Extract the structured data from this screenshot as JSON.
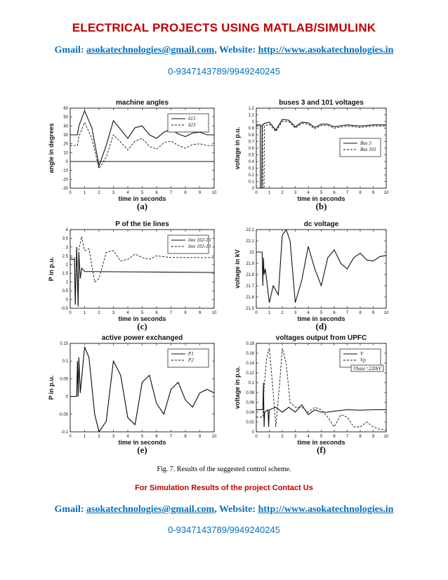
{
  "header": {
    "title": "ELECTRICAL PROJECTS USING MATLAB/SIMULINK",
    "gmail_label": "Gmail: ",
    "email": "asokatechnologies@gmail.com",
    "website_label": ", Website: ",
    "website": "http://www.asokatechnologies.in",
    "phone": "0-9347143789/9949240245"
  },
  "caption": "Fig. 7. Results of the suggested control scheme.",
  "cta": "For Simulation Results of the project Contact Us",
  "footer": {
    "gmail_label": "Gmail: ",
    "email": "asokatechnologies@gmail.com",
    "website_label": ", Website: ",
    "website": "http://www.asokatechnologies.in",
    "phone": "0-9347143789/9949240245"
  },
  "chart_data": [
    {
      "type": "line",
      "panel": "(a)",
      "title": "machine angles",
      "xlabel": "time in seconds",
      "ylabel": "angle in degrees",
      "xlim": [
        0,
        10
      ],
      "ylim": [
        -30,
        60
      ],
      "xticks": [
        0,
        1,
        2,
        3,
        4,
        5,
        6,
        7,
        8,
        9,
        10
      ],
      "yticks": [
        -30,
        -20,
        -10,
        0,
        10,
        20,
        30,
        40,
        50,
        60
      ],
      "legend": "top-right",
      "series": [
        {
          "name": "δ13",
          "style": "solid",
          "x": [
            0,
            0.5,
            0.6,
            1.0,
            1.5,
            2.0,
            2.5,
            3.0,
            3.5,
            4.0,
            4.5,
            5.0,
            5.5,
            6.0,
            6.5,
            7.0,
            7.5,
            8.0,
            8.5,
            9.0,
            9.5,
            10
          ],
          "y": [
            30,
            30,
            40,
            57,
            38,
            -5,
            18,
            46,
            36,
            26,
            38,
            40,
            30,
            26,
            33,
            36,
            31,
            28,
            32,
            33,
            30,
            30
          ]
        },
        {
          "name": "δ23",
          "style": "dashed",
          "x": [
            0,
            0.5,
            0.6,
            1.0,
            1.5,
            2.0,
            2.5,
            3.0,
            3.5,
            4.0,
            4.5,
            5.0,
            5.5,
            6.0,
            6.5,
            7.0,
            7.5,
            8.0,
            8.5,
            9.0,
            9.5,
            10
          ],
          "y": [
            18,
            18,
            28,
            44,
            26,
            -8,
            5,
            30,
            22,
            13,
            23,
            26,
            17,
            14,
            21,
            23,
            18,
            15,
            19,
            20,
            18,
            18
          ]
        },
        {
          "name": "",
          "style": "solid",
          "x": [
            0,
            10
          ],
          "y": [
            0,
            0
          ]
        }
      ]
    },
    {
      "type": "line",
      "panel": "(b)",
      "title": "buses 3 and 101 voltages",
      "xlabel": "time in seconds",
      "ylabel": "voltage in p.u.",
      "xlim": [
        0,
        10
      ],
      "ylim": [
        0,
        1.2
      ],
      "xticks": [
        0,
        1,
        2,
        3,
        4,
        5,
        6,
        7,
        8,
        9,
        10
      ],
      "yticks": [
        0,
        0.1,
        0.2,
        0.3,
        0.4,
        0.5,
        0.6,
        0.7,
        0.8,
        0.9,
        1,
        1.1,
        1.2
      ],
      "legend": "lower-right",
      "series": [
        {
          "name": "Bus 3",
          "style": "solid",
          "x": [
            0,
            0.3,
            0.32,
            0.42,
            0.45,
            0.55,
            0.6,
            1.0,
            1.5,
            2.0,
            2.5,
            3.0,
            3.5,
            4.0,
            4.5,
            5.0,
            5.5,
            6.0,
            7.0,
            8.0,
            9.0,
            10
          ],
          "y": [
            0.95,
            0.95,
            0.0,
            0.0,
            0.95,
            0.95,
            0.97,
            0.99,
            0.87,
            1.03,
            1.02,
            0.92,
            0.99,
            0.98,
            0.91,
            0.96,
            0.96,
            0.92,
            0.95,
            0.93,
            0.95,
            0.95
          ]
        },
        {
          "name": "Bus 101",
          "style": "dashed",
          "x": [
            0,
            0.48,
            0.5,
            0.6,
            0.62,
            1.0,
            1.5,
            2.0,
            2.5,
            3.0,
            3.5,
            4.0,
            4.5,
            5.0,
            5.5,
            6.0,
            7.0,
            8.0,
            9.0,
            10
          ],
          "y": [
            0.93,
            0.93,
            0.0,
            0.0,
            0.93,
            0.96,
            0.85,
            1.0,
            1.0,
            0.9,
            0.97,
            0.96,
            0.89,
            0.94,
            0.94,
            0.9,
            0.93,
            0.91,
            0.93,
            0.93
          ]
        }
      ]
    },
    {
      "type": "line",
      "panel": "(c)",
      "title": "P of the tie lines",
      "xlabel": "time in seconds",
      "ylabel": "P in p.u.",
      "xlim": [
        0,
        10
      ],
      "ylim": [
        -0.5,
        4
      ],
      "xticks": [
        0,
        1,
        2,
        3,
        4,
        5,
        6,
        7,
        8,
        9,
        10
      ],
      "yticks": [
        -0.5,
        0,
        0.5,
        1,
        1.5,
        2,
        2.5,
        3,
        3.5,
        4
      ],
      "legend": "top-right",
      "series": [
        {
          "name": "line 102-13",
          "style": "solid",
          "x": [
            0,
            0.3,
            0.35,
            0.45,
            0.55,
            0.6,
            0.7,
            0.8,
            1.0,
            10
          ],
          "y": [
            2.3,
            2.3,
            -0.3,
            3.0,
            -0.4,
            2.7,
            1.2,
            1.8,
            1.6,
            1.55
          ]
        },
        {
          "name": "line 101-13",
          "style": "dashed",
          "x": [
            0,
            0.3,
            0.35,
            0.45,
            0.55,
            0.6,
            0.8,
            1.0,
            1.3,
            1.7,
            2.0,
            2.5,
            3.0,
            3.5,
            4.0,
            4.5,
            5.0,
            5.5,
            6.0,
            7.0,
            8.0,
            9.0,
            10
          ],
          "y": [
            2.4,
            2.4,
            -0.2,
            3.0,
            -0.3,
            2.9,
            3.6,
            2.8,
            2.9,
            1.0,
            1.2,
            2.7,
            2.8,
            2.2,
            2.3,
            2.6,
            2.4,
            2.3,
            2.5,
            2.4,
            2.4,
            2.4,
            2.4
          ]
        }
      ]
    },
    {
      "type": "line",
      "panel": "(d)",
      "title": "dc voltage",
      "xlabel": "time in seconds",
      "ylabel": "voltage in kV",
      "xlim": [
        0,
        10
      ],
      "ylim": [
        21.5,
        22.2
      ],
      "xticks": [
        0,
        1,
        2,
        3,
        4,
        5,
        6,
        7,
        8,
        9,
        10
      ],
      "yticks": [
        21.5,
        21.6,
        21.7,
        21.8,
        21.9,
        22,
        22.1,
        22.2
      ],
      "legend": "none",
      "series": [
        {
          "name": "",
          "style": "solid",
          "x": [
            0,
            0.45,
            0.5,
            0.55,
            0.6,
            0.7,
            1.0,
            1.3,
            1.7,
            2.0,
            2.3,
            2.6,
            3.0,
            3.5,
            4.0,
            4.5,
            5.0,
            5.5,
            6.0,
            6.5,
            7.0,
            7.5,
            8.0,
            8.5,
            9.0,
            9.5,
            10
          ],
          "y": [
            22.0,
            22.0,
            21.7,
            21.95,
            21.8,
            21.85,
            21.55,
            21.7,
            21.62,
            22.15,
            22.2,
            22.1,
            21.55,
            21.75,
            22.05,
            21.85,
            21.7,
            21.95,
            22.02,
            21.9,
            21.85,
            21.95,
            21.99,
            21.93,
            21.92,
            21.96,
            21.97
          ]
        }
      ]
    },
    {
      "type": "line",
      "panel": "(e)",
      "title": "active power exchanged",
      "xlabel": "time in seconds",
      "ylabel": "P in p.u.",
      "xlim": [
        0,
        10
      ],
      "ylim": [
        -0.1,
        0.15
      ],
      "xticks": [
        0,
        1,
        2,
        3,
        4,
        5,
        6,
        7,
        8,
        9,
        10
      ],
      "yticks": [
        -0.1,
        -0.05,
        0,
        0.05,
        0.1,
        0.15
      ],
      "legend": "top-right",
      "series": [
        {
          "name": "P1",
          "style": "solid",
          "x": [
            0,
            0.45,
            0.5,
            0.55,
            0.6,
            0.7,
            1.0,
            1.3,
            1.7,
            2.0,
            2.5,
            3.0,
            3.5,
            4.0,
            4.5,
            5.0,
            5.5,
            6.0,
            6.5,
            7.0,
            7.5,
            8.0,
            8.5,
            9.0,
            9.5,
            10
          ],
          "y": [
            0,
            0,
            0.1,
            0,
            0.11,
            0.01,
            0.14,
            0.11,
            -0.05,
            -0.1,
            -0.07,
            0.1,
            0.06,
            -0.06,
            -0.08,
            0.04,
            0.06,
            -0.02,
            -0.05,
            0.02,
            0.04,
            -0.01,
            -0.03,
            0.01,
            0.02,
            0.01
          ]
        },
        {
          "name": "P2",
          "style": "dashed",
          "x": [
            0,
            0.45,
            0.5,
            0.55,
            0.6,
            0.7,
            1.0,
            1.3,
            1.7,
            2.0,
            2.5,
            3.0,
            3.5,
            4.0,
            4.5,
            5.0,
            5.5,
            6.0,
            6.5,
            7.0,
            7.5,
            8.0,
            8.5,
            9.0,
            9.5,
            10
          ],
          "y": [
            0,
            0,
            0.1,
            0,
            0.11,
            0.01,
            0.14,
            0.11,
            -0.05,
            -0.1,
            -0.07,
            0.1,
            0.06,
            -0.06,
            -0.08,
            0.04,
            0.06,
            -0.02,
            -0.05,
            0.02,
            0.04,
            -0.01,
            -0.03,
            0.01,
            0.02,
            0.01
          ]
        }
      ]
    },
    {
      "type": "line",
      "panel": "(f)",
      "title": "voltages output from UPFC",
      "xlabel": "time in seconds",
      "ylabel": "voltage in p.u.",
      "xlim": [
        0,
        10
      ],
      "ylim": [
        0,
        0.18
      ],
      "xticks": [
        0,
        1,
        2,
        3,
        4,
        5,
        6,
        7,
        8,
        9,
        10
      ],
      "yticks": [
        0,
        0.02,
        0.04,
        0.06,
        0.08,
        0.1,
        0.12,
        0.14,
        0.16,
        0.18
      ],
      "legend": "top-right",
      "annotation": "Vbase=220kV",
      "series": [
        {
          "name": "V",
          "style": "solid",
          "x": [
            0,
            0.5,
            0.55,
            0.6,
            0.65,
            0.9,
            0.95,
            1.0,
            1.5,
            2.0,
            2.5,
            3.0,
            3.5,
            4.0,
            4.5,
            5.0,
            5.5,
            6.0,
            7.0,
            8.0,
            9.0,
            10
          ],
          "y": [
            0.045,
            0.045,
            0.1,
            0.01,
            0.04,
            0.045,
            0.01,
            0.045,
            0.05,
            0.04,
            0.05,
            0.04,
            0.055,
            0.035,
            0.045,
            0.04,
            0.04,
            0.042,
            0.045,
            0.044,
            0.045,
            0.045
          ]
        },
        {
          "name": "Vp",
          "style": "dashed",
          "x": [
            0,
            0.5,
            0.6,
            0.8,
            1.0,
            1.3,
            1.5,
            1.8,
            2.0,
            2.3,
            2.6,
            3.0,
            3.5,
            4.0,
            4.5,
            5.0,
            5.5,
            6.0,
            6.5,
            7.0,
            7.5,
            8.0,
            8.5,
            9.0,
            9.5,
            10
          ],
          "y": [
            0.03,
            0.03,
            0.09,
            0.15,
            0.17,
            0.08,
            0.01,
            0.1,
            0.17,
            0.14,
            0.06,
            0.05,
            0.05,
            0.04,
            0.05,
            0.045,
            0.03,
            0.01,
            0.035,
            0.03,
            0.01,
            0.01,
            0.02,
            0.01,
            0.005,
            0.004
          ]
        }
      ]
    }
  ]
}
